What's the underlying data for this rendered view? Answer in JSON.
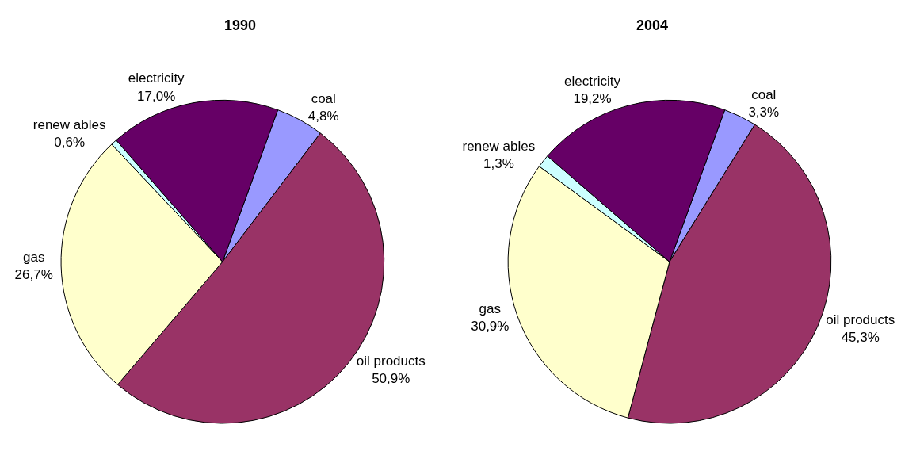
{
  "chart_data": [
    {
      "type": "pie",
      "title": "1990",
      "categories": [
        "coal",
        "oil products",
        "gas",
        "renew ables",
        "electricity"
      ],
      "values": [
        4.8,
        50.9,
        26.7,
        0.6,
        17.0
      ],
      "value_labels": [
        "4,8%",
        "50,9%",
        "26,7%",
        "0,6%",
        "17,0%"
      ],
      "colors": [
        "#9999ff",
        "#993366",
        "#ffffcc",
        "#ccffff",
        "#660066"
      ]
    },
    {
      "type": "pie",
      "title": "2004",
      "categories": [
        "coal",
        "oil products",
        "gas",
        "renew ables",
        "electricity"
      ],
      "values": [
        3.3,
        45.3,
        30.9,
        1.3,
        19.2
      ],
      "value_labels": [
        "3,3%",
        "45,3%",
        "30,9%",
        "1,3%",
        "19,2%"
      ],
      "colors": [
        "#9999ff",
        "#993366",
        "#ffffcc",
        "#ccffff",
        "#660066"
      ]
    }
  ]
}
